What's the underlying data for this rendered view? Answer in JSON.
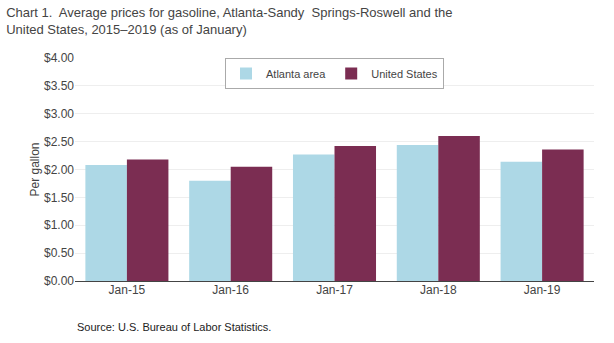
{
  "chart_data": {
    "type": "bar",
    "title": "Chart 1.  Average prices for gasoline, Atlanta-Sandy  Springs-Roswell and the\nUnited States, 2015–2019 (as of January)",
    "ylabel": "Per gallon",
    "annotations": [
      "Source: U.S. Bureau of Labor Statistics."
    ],
    "categories": [
      "Jan-15",
      "Jan-16",
      "Jan-17",
      "Jan-18",
      "Jan-19"
    ],
    "series": [
      {
        "name": "Atlanta area",
        "color": "#ADD8E6",
        "values": [
          2.08,
          1.8,
          2.27,
          2.44,
          2.14
        ]
      },
      {
        "name": "United States",
        "color": "#7B2D52",
        "values": [
          2.18,
          2.05,
          2.42,
          2.6,
          2.36
        ]
      }
    ],
    "ylim": [
      0,
      4.0
    ],
    "yticks": [
      {
        "value": 0.0,
        "label": "$0.00"
      },
      {
        "value": 0.5,
        "label": "$0.50"
      },
      {
        "value": 1.0,
        "label": "$1.00"
      },
      {
        "value": 1.5,
        "label": "$1.50"
      },
      {
        "value": 2.0,
        "label": "$2.00"
      },
      {
        "value": 2.5,
        "label": "$2.50"
      },
      {
        "value": 3.0,
        "label": "$3.00"
      },
      {
        "value": 3.5,
        "label": "$3.50"
      },
      {
        "value": 4.0,
        "label": "$4.00"
      }
    ],
    "grid": true,
    "legend": "upper center"
  }
}
